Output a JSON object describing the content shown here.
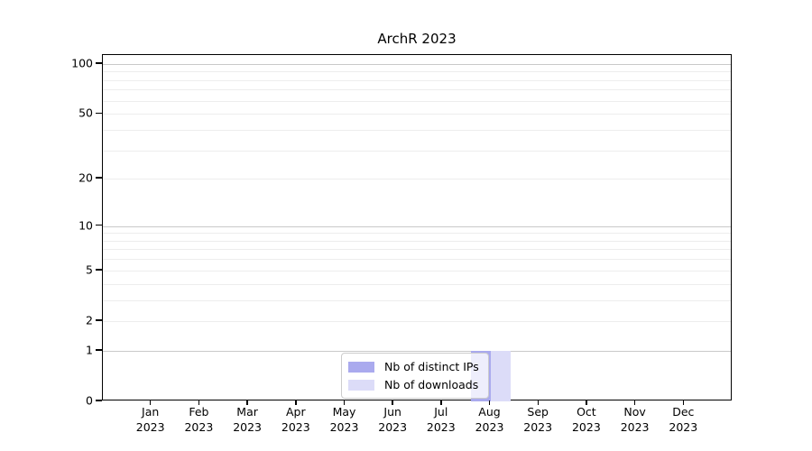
{
  "figure": {
    "background": "#ffffff"
  },
  "chart_data": {
    "type": "bar",
    "title": "ArchR 2023",
    "categories": [
      {
        "month": "Jan",
        "year": "2023"
      },
      {
        "month": "Feb",
        "year": "2023"
      },
      {
        "month": "Mar",
        "year": "2023"
      },
      {
        "month": "Apr",
        "year": "2023"
      },
      {
        "month": "May",
        "year": "2023"
      },
      {
        "month": "Jun",
        "year": "2023"
      },
      {
        "month": "Jul",
        "year": "2023"
      },
      {
        "month": "Aug",
        "year": "2023"
      },
      {
        "month": "Sep",
        "year": "2023"
      },
      {
        "month": "Oct",
        "year": "2023"
      },
      {
        "month": "Nov",
        "year": "2023"
      },
      {
        "month": "Dec",
        "year": "2023"
      }
    ],
    "series": [
      {
        "name": "Nb of distinct IPs",
        "color": "#aaaaee",
        "values": [
          0,
          0,
          0,
          0,
          0,
          0,
          0,
          1,
          0,
          0,
          0,
          0
        ]
      },
      {
        "name": "Nb of downloads",
        "color": "#dcdcf8",
        "values": [
          0,
          0,
          0,
          0,
          0,
          0,
          0,
          1,
          0,
          0,
          0,
          0
        ]
      }
    ],
    "yscale": "log10(1+y)",
    "ylim": [
      0,
      113
    ],
    "ytick_labels": [
      100,
      50,
      20,
      10,
      5,
      2,
      1,
      0
    ],
    "gridlines_major": [
      1,
      10,
      100
    ],
    "gridlines_minor": [
      2,
      3,
      4,
      5,
      6,
      7,
      8,
      9,
      20,
      30,
      40,
      50,
      60,
      70,
      80,
      90
    ],
    "grid": true,
    "legend_position": "lower center",
    "colors": {
      "axis": "#000000",
      "grid_major": "#c9c9c9",
      "grid_minor": "#ededed",
      "legend_border": "#cccccc",
      "text": "#000000"
    }
  }
}
